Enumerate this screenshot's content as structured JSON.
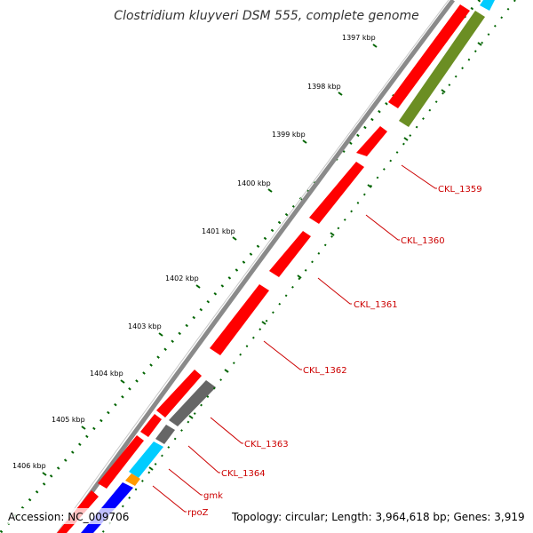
{
  "title": "Clostridium kluyveri DSM 555, complete genome",
  "footer": {
    "accession": "Accession: NC_009706",
    "summary": "Topology: circular; Length: 3,964,618 bp; Genes: 3,919"
  },
  "scale_labels": [
    "1397 kbp",
    "1398 kbp",
    "1399 kbp",
    "1400 kbp",
    "1401 kbp",
    "1402 kbp",
    "1403 kbp",
    "1404 kbp",
    "1405 kbp",
    "1406 kbp"
  ],
  "gene_labels": [
    "CKL_1359",
    "CKL_1360",
    "CKL_1361",
    "CKL_1362",
    "CKL_1363",
    "CKL_1364",
    "gmk",
    "rpoZ"
  ],
  "colors": {
    "backbone": "#8a8a8a",
    "forward_cds": "#ff0000",
    "reverse_cds_red": "#ff0000",
    "reverse_cds_green": "#6b8e23",
    "reverse_cds_gray": "#666666",
    "reverse_cds_cyan": "#00ccff",
    "reverse_cds_orange": "#ff9900",
    "reverse_cds_blue": "#0000ff",
    "dots": "#006400",
    "label": "#cc0000"
  }
}
